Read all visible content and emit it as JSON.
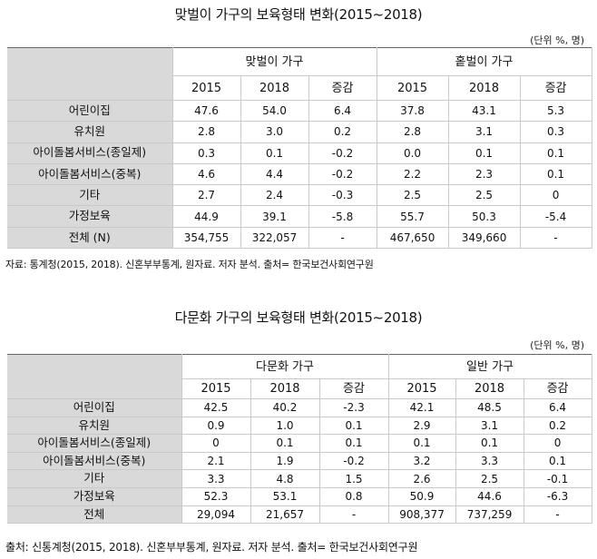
{
  "tables": [
    {
      "title": "맞벌이 가구의 보육형태 변화(2015~2018)",
      "unit": "(단위 %, 명)",
      "groups": [
        "맞벌이 가구",
        "홑벌이 가구"
      ],
      "years": [
        "2015",
        "2018",
        "증감",
        "2015",
        "2018",
        "증감"
      ],
      "rows": [
        {
          "label": "어린이집",
          "cells": [
            "47.6",
            "54.0",
            "6.4",
            "37.8",
            "43.1",
            "5.3"
          ]
        },
        {
          "label": "유치원",
          "cells": [
            "2.8",
            "3.0",
            "0.2",
            "2.8",
            "3.1",
            "0.3"
          ]
        },
        {
          "label": "아이돌봄서비스(종일제)",
          "cells": [
            "0.3",
            "0.1",
            "-0.2",
            "0.0",
            "0.1",
            "0.1"
          ]
        },
        {
          "label": "아이돌봄서비스(중복)",
          "cells": [
            "4.6",
            "4.4",
            "-0.2",
            "2.2",
            "2.3",
            "0.1"
          ]
        },
        {
          "label": "기타",
          "cells": [
            "2.7",
            "2.4",
            "-0.3",
            "2.5",
            "2.5",
            "0"
          ]
        },
        {
          "label": "가정보육",
          "cells": [
            "44.9",
            "39.1",
            "-5.8",
            "55.7",
            "50.3",
            "-5.4"
          ]
        },
        {
          "label": "전체 (N)",
          "cells": [
            "354,755",
            "322,057",
            "-",
            "467,650",
            "349,660",
            "-"
          ]
        }
      ],
      "source": "자료: 통계청(2015, 2018). 신혼부부통계, 원자료. 저자 분석. 출처= 한국보건사회연구원"
    },
    {
      "title": "다문화 가구의 보육형태 변화(2015~2018)",
      "unit": "(단위 %, 명)",
      "groups": [
        "다문화 가구",
        "일반 가구"
      ],
      "years": [
        "2015",
        "2018",
        "증감",
        "2015",
        "2018",
        "증감"
      ],
      "rows": [
        {
          "label": "어린이집",
          "cells": [
            "42.5",
            "40.2",
            "-2.3",
            "42.1",
            "48.5",
            "6.4"
          ]
        },
        {
          "label": "유치원",
          "cells": [
            "0.9",
            "1.0",
            "0.1",
            "2.9",
            "3.1",
            "0.2"
          ]
        },
        {
          "label": "아이돌봄서비스(종일제)",
          "cells": [
            "0",
            "0.1",
            "0.1",
            "0.1",
            "0.1",
            "0"
          ]
        },
        {
          "label": "아이돌봄서비스(중복)",
          "cells": [
            "2.1",
            "1.9",
            "-0.2",
            "3.2",
            "3.3",
            "0.1"
          ]
        },
        {
          "label": "기타",
          "cells": [
            "3.3",
            "4.8",
            "1.5",
            "2.6",
            "2.5",
            "-0.1"
          ]
        },
        {
          "label": "가정보육",
          "cells": [
            "52.3",
            "53.1",
            "0.8",
            "50.9",
            "44.6",
            "-6.3"
          ]
        },
        {
          "label": "전체",
          "cells": [
            "29,094",
            "21,657",
            "-",
            "908,377",
            "737,259",
            "-"
          ]
        }
      ],
      "source": "출처: 신통계청(2015, 2018). 신혼부부통계, 원자료. 저자 분석. 출처= 한국보건사회연구원"
    }
  ]
}
